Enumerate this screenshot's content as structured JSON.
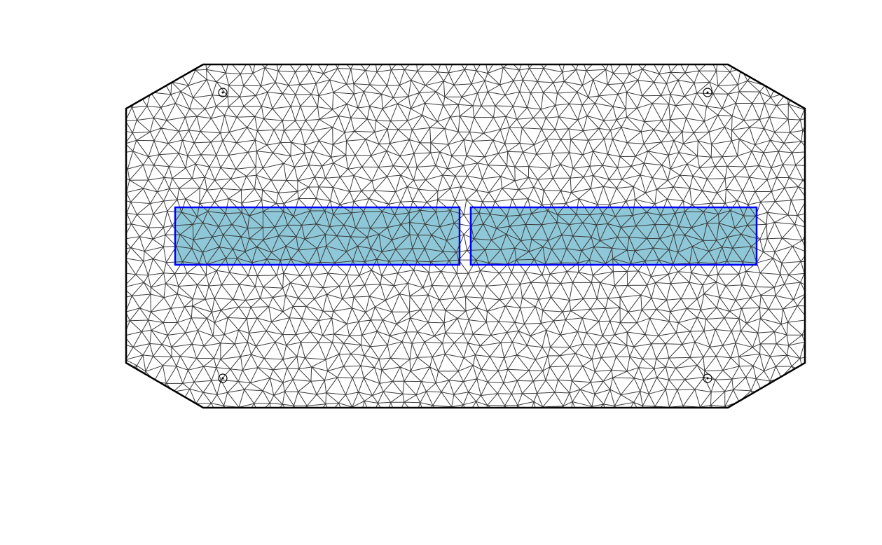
{
  "figure": {
    "title": "",
    "background": "#ffffff"
  },
  "colors": {
    "mesh": "#3a3a3a",
    "outline": "#000000",
    "region_stroke": "#0000ff",
    "region_fill": "#8ec8d8"
  },
  "mesh": {
    "element_type": "triangular",
    "outer_boundary": "octagon",
    "regions": [
      {
        "name": "left-rectangle",
        "color": "#8ec8d8"
      },
      {
        "name": "right-rectangle",
        "color": "#8ec8d8"
      }
    ],
    "markers": [
      {
        "name": "top-left-marker",
        "icon": "circle-dot-icon"
      },
      {
        "name": "top-right-marker",
        "icon": "circle-dot-icon"
      },
      {
        "name": "bottom-left-marker",
        "icon": "circle-dot-icon"
      },
      {
        "name": "bottom-right-marker",
        "icon": "circle-dot-icon"
      }
    ]
  }
}
